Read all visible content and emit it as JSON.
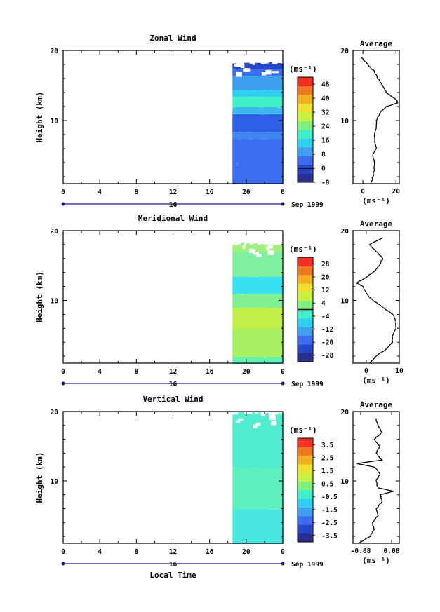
{
  "x_axis_label": "Local Time",
  "date_label": "Sep 1999",
  "x_tick_labels": [
    "0",
    "4",
    "8",
    "12",
    "16",
    "20",
    "0"
  ],
  "day_label": "16",
  "y_axis_label": "Height (km)",
  "chart_data": [
    {
      "type": "heatmap",
      "title": "Zonal Wind",
      "xlabel": "",
      "ylabel": "Height (km)",
      "x_range_hours": [
        0,
        24
      ],
      "ylim": [
        1,
        20
      ],
      "y_tick_labels": [
        "20",
        "10"
      ],
      "data_time_range_hours": [
        18.5,
        24
      ],
      "data_height_range_km": [
        1,
        18.3
      ],
      "colorbar": {
        "unit": "(ms⁻¹)",
        "tick_labels": [
          "48",
          "40",
          "32",
          "24",
          "16",
          "8",
          "0",
          "-8"
        ],
        "range": [
          -8,
          52
        ],
        "contour_at": 0
      },
      "palette": [
        "#2b2f8f",
        "#2646c8",
        "#3c6df0",
        "#3fa0f0",
        "#2fd0f0",
        "#40f0c8",
        "#80f080",
        "#c8f040",
        "#f0e030",
        "#f0b020",
        "#f07820",
        "#f03020"
      ],
      "profile_layers": [
        {
          "z": [
            1,
            4
          ],
          "value": 6,
          "color": "#3c6df0"
        },
        {
          "z": [
            4,
            7.5
          ],
          "value": 7,
          "color": "#3c6df0"
        },
        {
          "z": [
            7.5,
            8.5
          ],
          "value": 10,
          "color": "#3f86f0"
        },
        {
          "z": [
            8.5,
            11
          ],
          "value": 4,
          "color": "#2f5ee8"
        },
        {
          "z": [
            11,
            12
          ],
          "value": 16,
          "color": "#3fb8f0"
        },
        {
          "z": [
            12,
            13.5
          ],
          "value": 24,
          "color": "#40f0c8"
        },
        {
          "z": [
            13.5,
            14.5
          ],
          "value": 20,
          "color": "#2fd0f0"
        },
        {
          "z": [
            14.5,
            16.5
          ],
          "value": 14,
          "color": "#3fa0f0"
        },
        {
          "z": [
            16.5,
            17.5
          ],
          "value": 9,
          "color": "#3c6df0"
        },
        {
          "z": [
            17.5,
            18.3
          ],
          "value": 3,
          "color": "#2646c8"
        }
      ],
      "average": {
        "title": "Average",
        "xlabel": "(ms⁻¹)",
        "xlim": [
          -6,
          22
        ],
        "x_tick_labels": [
          "0",
          "20"
        ],
        "x_ticks": [
          0,
          20
        ],
        "y_tick_labels": [
          "20",
          "10"
        ],
        "z": [
          1,
          2,
          3,
          4,
          5,
          6,
          7,
          8,
          9,
          10,
          11,
          12,
          12.5,
          13,
          14,
          15,
          16,
          17,
          18,
          19
        ],
        "values": [
          5,
          6,
          7,
          7,
          6,
          8,
          7,
          7,
          8,
          8,
          10,
          14,
          21,
          20,
          14,
          12,
          9,
          7,
          3,
          -1
        ]
      }
    },
    {
      "type": "heatmap",
      "title": "Meridional Wind",
      "xlabel": "",
      "ylabel": "Height (km)",
      "x_range_hours": [
        0,
        24
      ],
      "ylim": [
        1,
        20
      ],
      "y_tick_labels": [
        "20",
        "10"
      ],
      "data_time_range_hours": [
        18.5,
        24
      ],
      "data_height_range_km": [
        1,
        18.3
      ],
      "colorbar": {
        "unit": "(ms⁻¹)",
        "tick_labels": [
          "28",
          "20",
          "12",
          "4",
          "-4",
          "-12",
          "-20",
          "-28"
        ],
        "range": [
          -32,
          32
        ],
        "contour_at": 0
      },
      "palette": [
        "#2b2f8f",
        "#2646c8",
        "#3c6df0",
        "#3fa0f0",
        "#2fd0f0",
        "#40f0c8",
        "#80f080",
        "#c8f040",
        "#f0e030",
        "#f0b020",
        "#f07820",
        "#f03020"
      ],
      "profile_layers": [
        {
          "z": [
            1,
            2
          ],
          "value": 2,
          "color": "#60f0b0"
        },
        {
          "z": [
            2,
            6
          ],
          "value": 8,
          "color": "#a8f060"
        },
        {
          "z": [
            6,
            9
          ],
          "value": 10,
          "color": "#c0f048"
        },
        {
          "z": [
            9,
            11
          ],
          "value": 5,
          "color": "#80f090"
        },
        {
          "z": [
            11,
            13.5
          ],
          "value": -6,
          "color": "#38e0f0"
        },
        {
          "z": [
            13.5,
            17
          ],
          "value": 4,
          "color": "#80f0a0"
        },
        {
          "z": [
            17,
            18.3
          ],
          "value": 5,
          "color": "#a0f080"
        }
      ],
      "average": {
        "title": "Average",
        "xlabel": "(ms⁻¹)",
        "xlim": [
          -4,
          10
        ],
        "x_tick_labels": [
          "0",
          "10"
        ],
        "x_ticks": [
          0,
          10
        ],
        "y_tick_labels": [
          "20",
          "10"
        ],
        "z": [
          1,
          2,
          3,
          4,
          5,
          6,
          7,
          8,
          9,
          10,
          11,
          12,
          12.5,
          13,
          14,
          15,
          16,
          17,
          18,
          19
        ],
        "values": [
          1,
          3,
          6,
          8,
          8,
          9,
          9,
          8,
          5,
          2,
          0,
          -1,
          -3,
          -1,
          2,
          4,
          5,
          3,
          1,
          5
        ]
      }
    },
    {
      "type": "heatmap",
      "title": "Vertical Wind",
      "xlabel": "Local Time",
      "ylabel": "Height (km)",
      "x_range_hours": [
        0,
        24
      ],
      "ylim": [
        1,
        20
      ],
      "y_tick_labels": [
        "20",
        "10"
      ],
      "data_time_range_hours": [
        18.5,
        24
      ],
      "data_height_range_km": [
        1,
        19.9
      ],
      "colorbar": {
        "unit": "(ms⁻¹)",
        "tick_labels": [
          "3.5",
          "2.5",
          "1.5",
          "0.5",
          "-0.5",
          "-1.5",
          "-2.5",
          "-3.5"
        ],
        "range": [
          -4,
          4
        ],
        "contour_at": null
      },
      "palette": [
        "#2b2f8f",
        "#2646c8",
        "#3c6df0",
        "#3fa0f0",
        "#2fd0f0",
        "#40f0c8",
        "#80f080",
        "#c8f040",
        "#f0e030",
        "#f0b020",
        "#f07820",
        "#f03020"
      ],
      "profile_layers": [
        {
          "z": [
            1,
            6
          ],
          "value": -0.2,
          "color": "#48e8e0"
        },
        {
          "z": [
            6,
            12
          ],
          "value": 0.1,
          "color": "#60f0c0"
        },
        {
          "z": [
            12,
            19.9
          ],
          "value": -0.1,
          "color": "#50ecd0"
        }
      ],
      "average": {
        "title": "Average",
        "xlabel": "(ms⁻¹)",
        "xlim": [
          -0.12,
          0.12
        ],
        "x_tick_labels": [
          "-0.08",
          "0.08"
        ],
        "x_ticks": [
          -0.08,
          0.08
        ],
        "y_tick_labels": [
          "20",
          "10"
        ],
        "z": [
          1,
          2,
          3,
          4,
          5,
          6,
          7,
          8,
          8.5,
          9,
          10,
          11,
          12,
          12.5,
          13,
          14,
          15,
          16,
          17,
          18,
          19
        ],
        "values": [
          -0.09,
          -0.03,
          -0.01,
          -0.02,
          0.01,
          0.0,
          0.03,
          0.02,
          0.09,
          0.01,
          0.0,
          0.02,
          -0.01,
          -0.1,
          0.03,
          0.0,
          0.02,
          -0.01,
          0.03,
          0.01,
          0.0
        ]
      }
    }
  ]
}
